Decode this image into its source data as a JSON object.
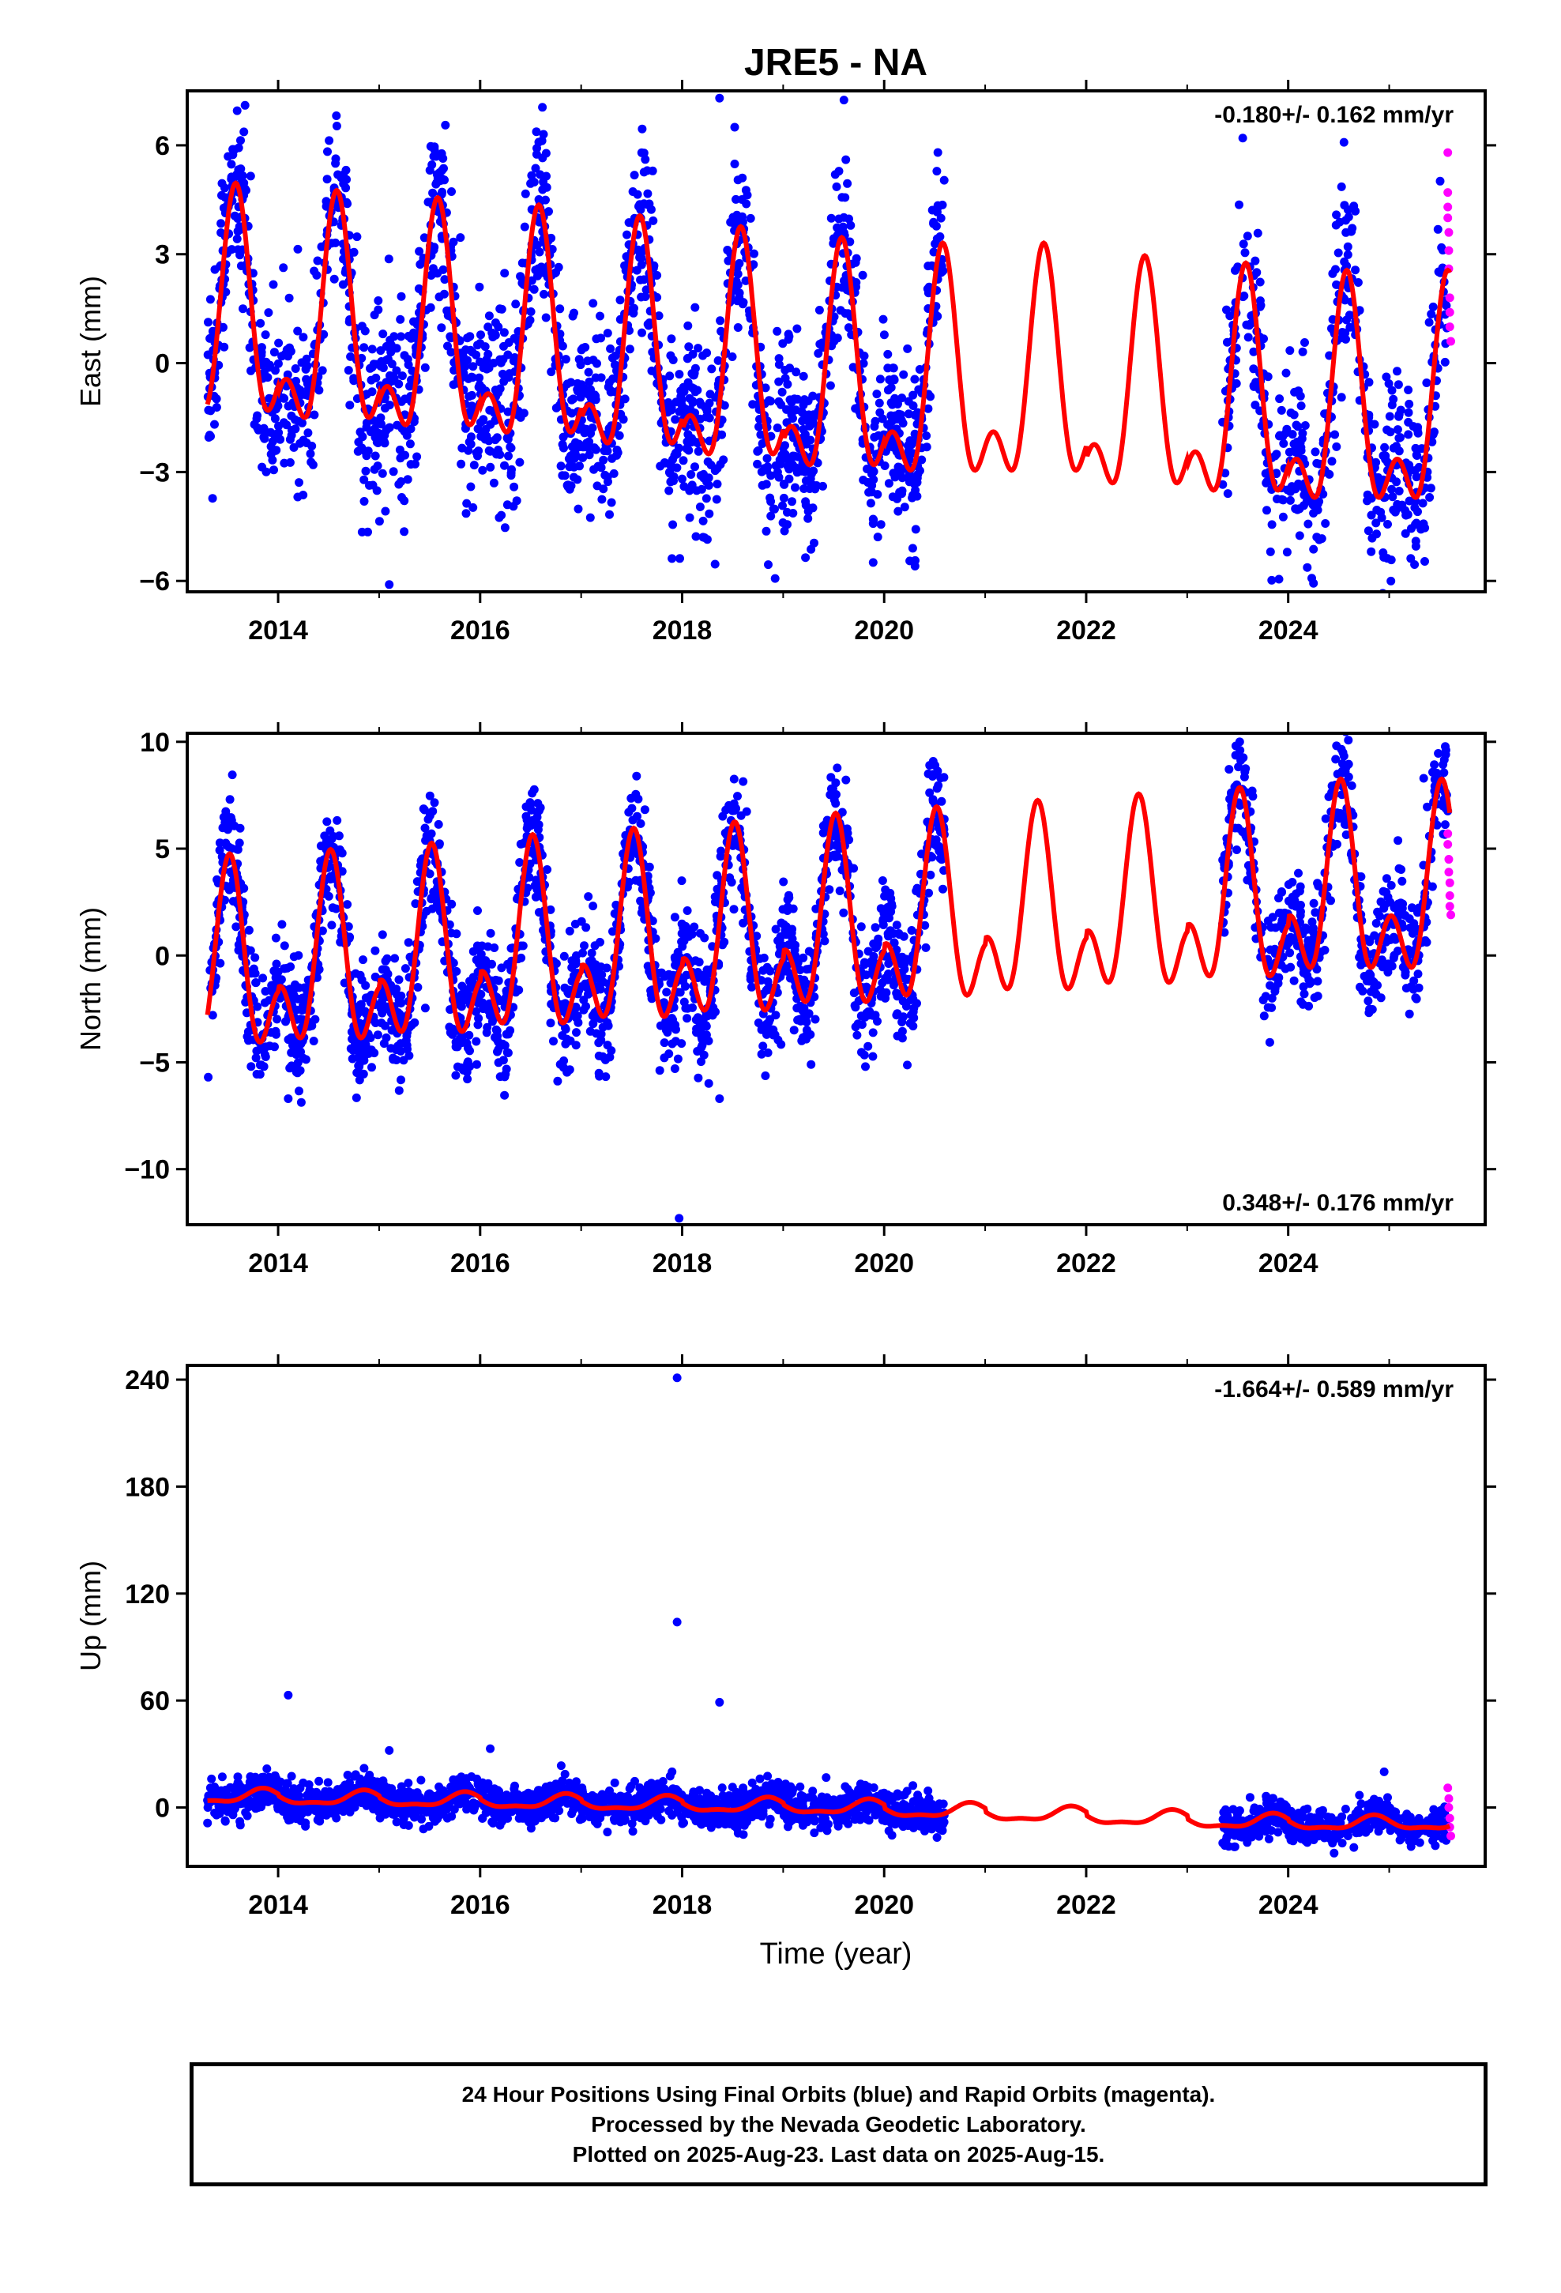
{
  "title": "JRE5 - NA",
  "xlabel": "Time (year)",
  "footer": {
    "line1": "24 Hour Positions Using Final Orbits (blue) and Rapid Orbits (magenta).",
    "line2": "Processed by the Nevada Geodetic Laboratory.",
    "line3": "Plotted on 2025-Aug-23. Last data on 2025-Aug-15."
  },
  "colors": {
    "final_orbits": "#0000ff",
    "rapid_orbits": "#ff00ff",
    "model": "#ff0000",
    "frame": "#000000"
  },
  "chart_data": [
    {
      "type": "scatter",
      "name": "east",
      "title": "JRE5 - NA",
      "ylabel": "East (mm)",
      "rate_text": "-0.180+/- 0.162 mm/yr",
      "rate_position": "top-right",
      "xlim": [
        2013.1,
        2025.95
      ],
      "ylim": [
        -6.3,
        7.5
      ],
      "x_ticks": [
        2014,
        2016,
        2018,
        2020,
        2022,
        2024
      ],
      "y_ticks": [
        -6,
        -3,
        0,
        3,
        6
      ],
      "grid": false,
      "data_window": [
        2013.3,
        2020.6
      ],
      "data_window_2": [
        2023.35,
        2025.58
      ],
      "model": {
        "amplitude": 2.6,
        "phase_peak": 0.58,
        "semiannual": 0.6,
        "offset": [
          0.8,
          0.6,
          0.4,
          0.2,
          -0.1,
          -0.4,
          -0.7,
          -0.85,
          -0.85,
          -1.2,
          -1.4,
          -1.6
        ]
      },
      "series": [
        {
          "name": "Final Orbits",
          "color": "#0000ff",
          "scatter": 1.3,
          "n": 2400
        },
        {
          "name": "Rapid Orbits",
          "color": "#ff00ff",
          "x": [
            2025.58,
            2025.58,
            2025.58,
            2025.58,
            2025.59,
            2025.59,
            2025.59,
            2025.6,
            2025.6,
            2025.6,
            2025.61
          ],
          "y": [
            5.8,
            4.7,
            4.3,
            4.0,
            3.6,
            3.1,
            2.6,
            1.8,
            1.4,
            1.0,
            0.6
          ]
        }
      ],
      "outliers": [
        {
          "x": 2018.37,
          "y": 7.3
        },
        {
          "x": 2015.1,
          "y": -6.1
        },
        {
          "x": 2018.52,
          "y": 6.5
        },
        {
          "x": 2023.55,
          "y": 6.2
        }
      ]
    },
    {
      "type": "scatter",
      "name": "north",
      "ylabel": "North (mm)",
      "rate_text": "0.348+/- 0.176 mm/yr",
      "rate_position": "bottom-right",
      "xlim": [
        2013.1,
        2025.95
      ],
      "ylim": [
        -12.6,
        10.4
      ],
      "x_ticks": [
        2014,
        2016,
        2018,
        2020,
        2022,
        2024
      ],
      "y_ticks": [
        -10,
        -5,
        0,
        5,
        10
      ],
      "grid": false,
      "data_window": [
        2013.3,
        2020.6
      ],
      "data_window_2": [
        2023.35,
        2025.58
      ],
      "model": {
        "amplitude": 3.2,
        "phase_peak": 0.52,
        "semiannual": 0.8,
        "offset": [
          -1.0,
          -0.8,
          -0.5,
          -0.1,
          0.2,
          0.5,
          0.9,
          1.2,
          1.5,
          1.8,
          2.1,
          2.5
        ]
      },
      "series": [
        {
          "name": "Final Orbits",
          "color": "#0000ff",
          "scatter": 1.4,
          "n": 2400
        },
        {
          "name": "Rapid Orbits",
          "color": "#ff00ff",
          "x": [
            2025.58,
            2025.58,
            2025.59,
            2025.59,
            2025.6,
            2025.6,
            2025.6,
            2025.61
          ],
          "y": [
            5.7,
            5.2,
            4.5,
            3.9,
            3.4,
            2.8,
            2.3,
            1.9
          ]
        }
      ],
      "outliers": [
        {
          "x": 2017.97,
          "y": -12.3
        },
        {
          "x": 2023.52,
          "y": 10.0
        },
        {
          "x": 2025.56,
          "y": 9.4
        },
        {
          "x": 2020.45,
          "y": 8.9
        },
        {
          "x": 2018.37,
          "y": -6.7
        },
        {
          "x": 2014.1,
          "y": -6.7
        }
      ]
    },
    {
      "type": "scatter",
      "name": "up",
      "ylabel": "Up (mm)",
      "xlabel": "Time (year)",
      "rate_text": "-1.664+/- 0.589 mm/yr",
      "rate_position": "top-right",
      "xlim": [
        2013.1,
        2025.95
      ],
      "ylim": [
        -33,
        248
      ],
      "x_ticks": [
        2014,
        2016,
        2018,
        2020,
        2022,
        2024
      ],
      "y_ticks": [
        0,
        60,
        120,
        180,
        240
      ],
      "grid": false,
      "data_window": [
        2013.3,
        2020.6
      ],
      "data_window_2": [
        2023.35,
        2025.58
      ],
      "model": {
        "amplitude": 3.5,
        "phase_peak": 0.85,
        "semiannual": 0.4,
        "offset": [
          6,
          5,
          4,
          3,
          2,
          1,
          0,
          -2,
          -4,
          -6,
          -8,
          -9
        ]
      },
      "series": [
        {
          "name": "Final Orbits",
          "color": "#0000ff",
          "scatter": 5,
          "n": 2400
        },
        {
          "name": "Rapid Orbits",
          "color": "#ff00ff",
          "x": [
            2025.58,
            2025.59,
            2025.59,
            2025.6,
            2025.6,
            2025.61
          ],
          "y": [
            11,
            5,
            0,
            -6,
            -11,
            -16
          ]
        }
      ],
      "outliers": [
        {
          "x": 2017.95,
          "y": 241
        },
        {
          "x": 2017.95,
          "y": 104
        },
        {
          "x": 2014.1,
          "y": 63
        },
        {
          "x": 2018.37,
          "y": 59
        },
        {
          "x": 2016.1,
          "y": 33
        },
        {
          "x": 2015.1,
          "y": 32
        },
        {
          "x": 2024.95,
          "y": 20
        },
        {
          "x": 2017.9,
          "y": 20
        }
      ]
    }
  ]
}
